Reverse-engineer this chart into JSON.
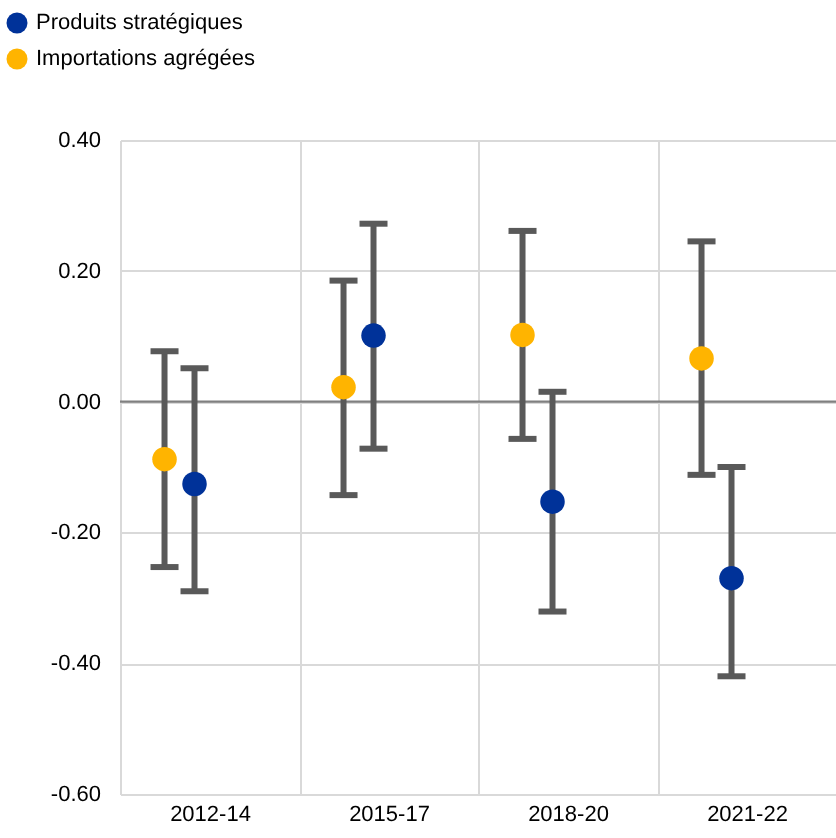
{
  "chart_data": {
    "type": "scatter",
    "categories": [
      "2012-14",
      "2015-17",
      "2018-20",
      "2021-22"
    ],
    "series": [
      {
        "name": "Produits stratégiques",
        "color": "#003299",
        "values": [
          -0.126,
          0.101,
          -0.153,
          -0.27
        ],
        "errors": [
          [
            -0.29,
            0.051
          ],
          [
            -0.072,
            0.272
          ],
          [
            -0.321,
            0.015
          ],
          [
            -0.42,
            -0.1
          ]
        ]
      },
      {
        "name": "Importations agrégées",
        "color": "#ffb400",
        "values": [
          -0.088,
          0.022,
          0.102,
          0.066
        ],
        "errors": [
          [
            -0.253,
            0.077
          ],
          [
            -0.143,
            0.185
          ],
          [
            -0.057,
            0.261
          ],
          [
            -0.112,
            0.245
          ]
        ]
      }
    ],
    "ylim": [
      -0.6,
      0.4
    ],
    "yticks": [
      {
        "value": -0.6,
        "label": "-0.60"
      },
      {
        "value": -0.4,
        "label": "-0.40"
      },
      {
        "value": -0.2,
        "label": "-0.20"
      },
      {
        "value": 0,
        "label": "0.00"
      },
      {
        "value": 0.2,
        "label": "0.20"
      },
      {
        "value": 0.4,
        "label": "0.40"
      }
    ],
    "ref_lines": [
      {
        "axis": "y",
        "value": 0,
        "color": "#808080"
      }
    ],
    "grid": true,
    "legend": "top left",
    "marker": "circle"
  }
}
